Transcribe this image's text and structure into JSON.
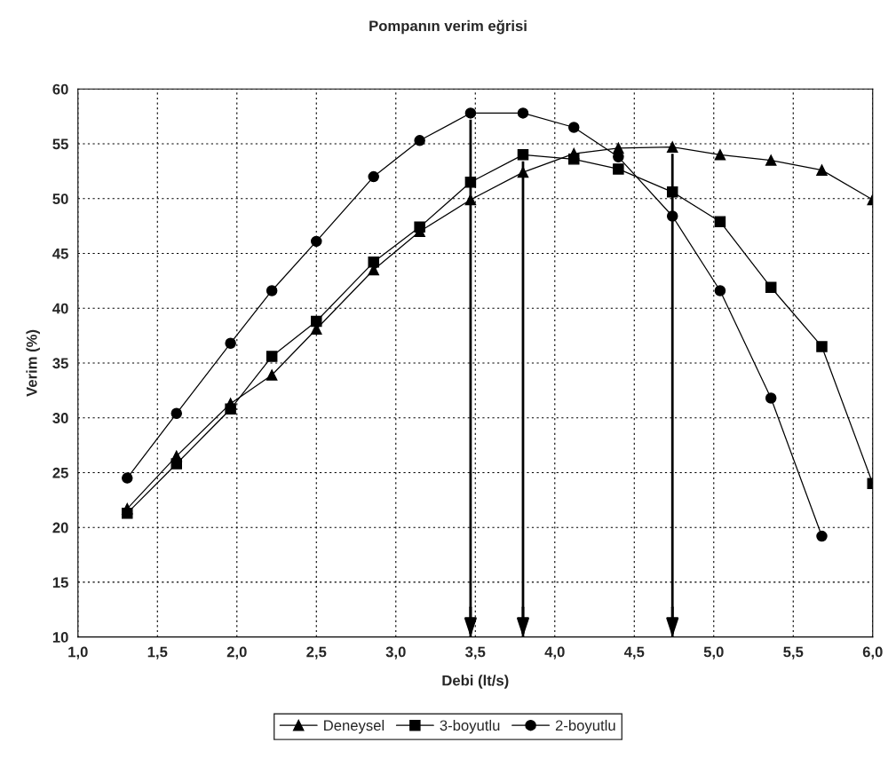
{
  "chart_data": {
    "type": "line",
    "title": "Pompanın verim eğrisi",
    "xlabel": "Debi (lt/s)",
    "ylabel": "Verim (%)",
    "x": [
      1.31,
      1.62,
      1.96,
      2.22,
      2.5,
      2.86,
      3.15,
      3.47,
      3.8,
      4.12,
      4.4,
      4.74,
      5.04,
      5.36,
      5.68,
      6.0
    ],
    "series": [
      {
        "name": "Deneysel",
        "color": "#000000",
        "marker": "triangle",
        "values": [
          21.7,
          26.5,
          31.3,
          33.9,
          38.1,
          43.5,
          47.0,
          49.9,
          52.4,
          54.1,
          54.6,
          54.7,
          54.0,
          53.5,
          52.6,
          49.9
        ]
      },
      {
        "name": "3-boyutlu",
        "color": "#000000",
        "marker": "square",
        "values": [
          21.3,
          25.8,
          30.8,
          35.6,
          38.8,
          44.2,
          47.4,
          51.5,
          54.0,
          53.6,
          52.7,
          50.6,
          47.9,
          41.9,
          36.5,
          24.0
        ]
      },
      {
        "name": "2-boyutlu",
        "color": "#000000",
        "marker": "circle",
        "values": [
          24.5,
          30.4,
          36.8,
          41.6,
          46.1,
          52.0,
          55.3,
          57.8,
          57.8,
          56.5,
          53.8,
          48.4,
          41.6,
          31.8,
          19.2,
          null
        ]
      }
    ],
    "xlim": [
      1.0,
      6.0
    ],
    "ylim": [
      10,
      60
    ],
    "xticks": [
      {
        "value": 1.0,
        "label": "1,0"
      },
      {
        "value": 1.5,
        "label": "1,5"
      },
      {
        "value": 2.0,
        "label": "2,0"
      },
      {
        "value": 2.5,
        "label": "2,5"
      },
      {
        "value": 3.0,
        "label": "3,0"
      },
      {
        "value": 3.5,
        "label": "3,5"
      },
      {
        "value": 4.0,
        "label": "4,0"
      },
      {
        "value": 4.5,
        "label": "4,5"
      },
      {
        "value": 5.0,
        "label": "5,0"
      },
      {
        "value": 5.5,
        "label": "5,5"
      },
      {
        "value": 6.0,
        "label": "6,0"
      }
    ],
    "yticks": [
      10,
      15,
      20,
      25,
      30,
      35,
      40,
      45,
      50,
      55,
      60
    ],
    "ref_lines": [
      {
        "axis": "x",
        "value": 3.47,
        "color": "#000000"
      },
      {
        "axis": "x",
        "value": 3.8,
        "color": "#000000"
      },
      {
        "axis": "x",
        "value": 4.74,
        "color": "#000000"
      }
    ],
    "grid": true,
    "legend": "bottom",
    "line_style": "solid"
  }
}
